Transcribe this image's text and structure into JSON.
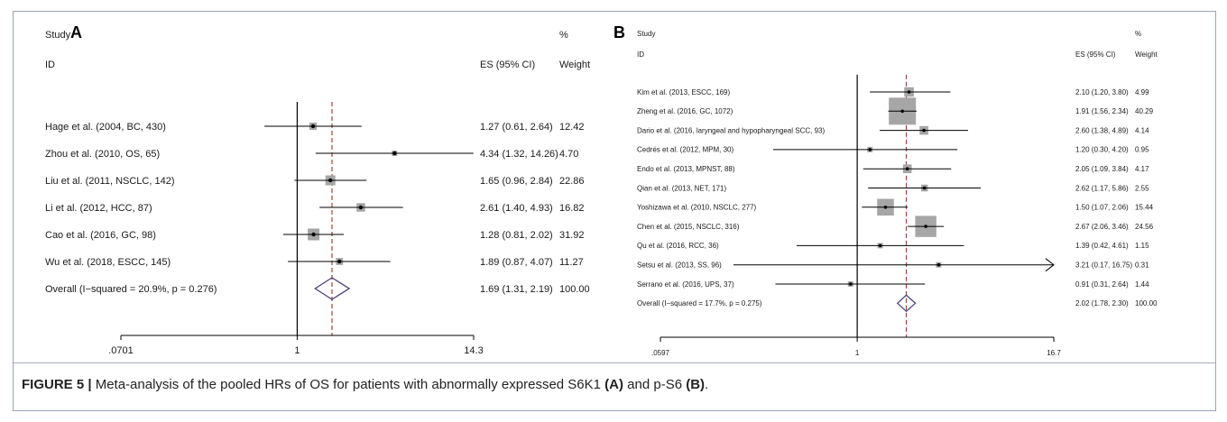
{
  "caption": {
    "label": "FIGURE 5 |",
    "text_before_A": " Meta-analysis of the pooled HRs of OS for patients with abnormally expressed S6K1 ",
    "ref_A": "(A)",
    "text_between": " and p-S6 ",
    "ref_B": "(B)",
    "text_end": "."
  },
  "chart_data": [
    {
      "type": "forest",
      "panel": "A",
      "header": {
        "study": "Study",
        "id": "ID",
        "es": "ES (95% CI)",
        "pct": "%",
        "weight": "Weight"
      },
      "x_scale": "log",
      "x_ticks": [
        ".0701",
        "1",
        "14.3"
      ],
      "xlim": [
        0.0701,
        14.3
      ],
      "reference_line": 1,
      "pooled_line": 1.69,
      "studies": [
        {
          "id": "Hage et al. (2004, BC, 430)",
          "es": 1.27,
          "lo": 0.61,
          "hi": 2.64,
          "es_text": "1.27 (0.61, 2.64)",
          "weight": 12.42,
          "weight_text": "12.42"
        },
        {
          "id": "Zhou et al. (2010, OS, 65)",
          "es": 4.34,
          "lo": 1.32,
          "hi": 14.26,
          "es_text": "4.34 (1.32, 14.26)",
          "weight": 4.7,
          "weight_text": "4.70"
        },
        {
          "id": "Liu et al. (2011, NSCLC, 142)",
          "es": 1.65,
          "lo": 0.96,
          "hi": 2.84,
          "es_text": "1.65 (0.96, 2.84)",
          "weight": 22.86,
          "weight_text": "22.86"
        },
        {
          "id": "Li et al. (2012, HCC, 87)",
          "es": 2.61,
          "lo": 1.4,
          "hi": 4.93,
          "es_text": "2.61 (1.40, 4.93)",
          "weight": 16.82,
          "weight_text": "16.82"
        },
        {
          "id": "Cao et al. (2016, GC, 98)",
          "es": 1.28,
          "lo": 0.81,
          "hi": 2.02,
          "es_text": "1.28 (0.81, 2.02)",
          "weight": 31.92,
          "weight_text": "31.92"
        },
        {
          "id": "Wu et al. (2018, ESCC, 145)",
          "es": 1.89,
          "lo": 0.87,
          "hi": 4.07,
          "es_text": "1.89 (0.87, 4.07)",
          "weight": 11.27,
          "weight_text": "11.27"
        }
      ],
      "overall": {
        "id": "Overall  (I−squared = 20.9%, p = 0.276)",
        "es": 1.69,
        "lo": 1.31,
        "hi": 2.19,
        "es_text": "1.69 (1.31, 2.19)",
        "weight_text": "100.00"
      }
    },
    {
      "type": "forest",
      "panel": "B",
      "header": {
        "study": "Study",
        "id": "ID",
        "es": "ES (95% CI)",
        "pct": "%",
        "weight": "Weight"
      },
      "x_scale": "log",
      "x_ticks": [
        ".0597",
        "1",
        "16.7"
      ],
      "xlim": [
        0.0597,
        16.7
      ],
      "reference_line": 1,
      "pooled_line": 2.02,
      "studies": [
        {
          "id": "Kim et al. (2013, ESCC, 169)",
          "es": 2.1,
          "lo": 1.2,
          "hi": 3.8,
          "es_text": "2.10 (1.20, 3.80)",
          "weight": 4.99,
          "weight_text": "4.99"
        },
        {
          "id": "Zheng et al. (2016, GC, 1072)",
          "es": 1.91,
          "lo": 1.56,
          "hi": 2.34,
          "es_text": "1.91 (1.56, 2.34)",
          "weight": 40.29,
          "weight_text": "40.29"
        },
        {
          "id": "Dario et al. (2016, laryngeal and hypopharyngeal SCC, 93)",
          "es": 2.6,
          "lo": 1.38,
          "hi": 4.89,
          "es_text": "2.60 (1.38, 4.89)",
          "weight": 4.14,
          "weight_text": "4.14"
        },
        {
          "id": "Cedrés et al. (2012, MPM, 30)",
          "es": 1.2,
          "lo": 0.3,
          "hi": 4.2,
          "es_text": "1.20 (0.30, 4.20)",
          "weight": 0.95,
          "weight_text": "0.95"
        },
        {
          "id": "Endo et al. (2013, MPNST, 88)",
          "es": 2.05,
          "lo": 1.09,
          "hi": 3.84,
          "es_text": "2.05 (1.09, 3.84)",
          "weight": 4.17,
          "weight_text": "4.17"
        },
        {
          "id": "Qian et al. (2013, NET, 171)",
          "es": 2.62,
          "lo": 1.17,
          "hi": 5.86,
          "es_text": "2.62 (1.17, 5.86)",
          "weight": 2.55,
          "weight_text": "2.55"
        },
        {
          "id": "Yoshizawa et al. (2010, NSCLC, 277)",
          "es": 1.5,
          "lo": 1.07,
          "hi": 2.06,
          "es_text": "1.50 (1.07, 2.06)",
          "weight": 15.44,
          "weight_text": "15.44"
        },
        {
          "id": "Chen et al. (2015, NSCLC, 316)",
          "es": 2.67,
          "lo": 2.06,
          "hi": 3.46,
          "es_text": "2.67 (2.06, 3.46)",
          "weight": 24.56,
          "weight_text": "24.56"
        },
        {
          "id": "Qu et al. (2016, RCC, 36)",
          "es": 1.39,
          "lo": 0.42,
          "hi": 4.61,
          "es_text": "1.39 (0.42, 4.61)",
          "weight": 1.15,
          "weight_text": "1.15"
        },
        {
          "id": "Setsu et al. (2013, SS, 96)",
          "es": 3.21,
          "lo": 0.17,
          "hi": 16.75,
          "es_text": "3.21 (0.17, 16.75)",
          "weight": 0.31,
          "weight_text": "0.31"
        },
        {
          "id": "Serrano et al. (2016, UPS, 37)",
          "es": 0.91,
          "lo": 0.31,
          "hi": 2.64,
          "es_text": "0.91 (0.31, 2.64)",
          "weight": 1.44,
          "weight_text": "1.44"
        }
      ],
      "overall": {
        "id": "Overall  (I−squared = 17.7%, p = 0.275)",
        "es": 2.02,
        "lo": 1.78,
        "hi": 2.3,
        "es_text": "2.02 (1.78, 2.30)",
        "weight_text": "100.00"
      }
    }
  ]
}
